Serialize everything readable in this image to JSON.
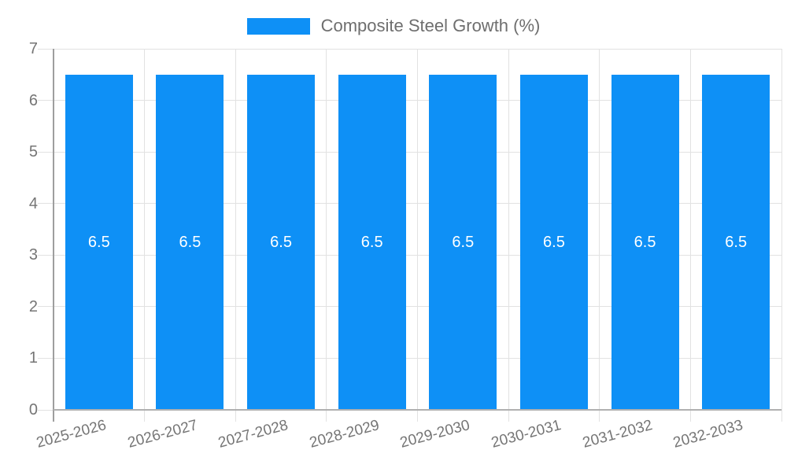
{
  "chart_data": {
    "type": "bar",
    "title": "",
    "legend_label": "Composite Steel Growth (%)",
    "legend_position": "top-center",
    "categories": [
      "2025-2026",
      "2026-2027",
      "2027-2028",
      "2028-2029",
      "2029-2030",
      "2030-2031",
      "2031-2032",
      "2032-2033"
    ],
    "series": [
      {
        "name": "Composite Steel Growth (%)",
        "values": [
          6.5,
          6.5,
          6.5,
          6.5,
          6.5,
          6.5,
          6.5,
          6.5
        ]
      }
    ],
    "value_labels": [
      "6.5",
      "6.5",
      "6.5",
      "6.5",
      "6.5",
      "6.5",
      "6.5",
      "6.5"
    ],
    "xlabel": "",
    "ylabel": "",
    "ylim": [
      0,
      7
    ],
    "yticks": [
      0,
      1,
      2,
      3,
      4,
      5,
      6,
      7
    ],
    "grid": true,
    "colors": {
      "bar": "#0e90f6",
      "grid": "#e2e2e2",
      "axis": "#9e9e9e",
      "baseline": "#b0b0b0",
      "text": "#757575",
      "legend_text": "#6e6e6e",
      "value_text": "#ffffff"
    }
  }
}
